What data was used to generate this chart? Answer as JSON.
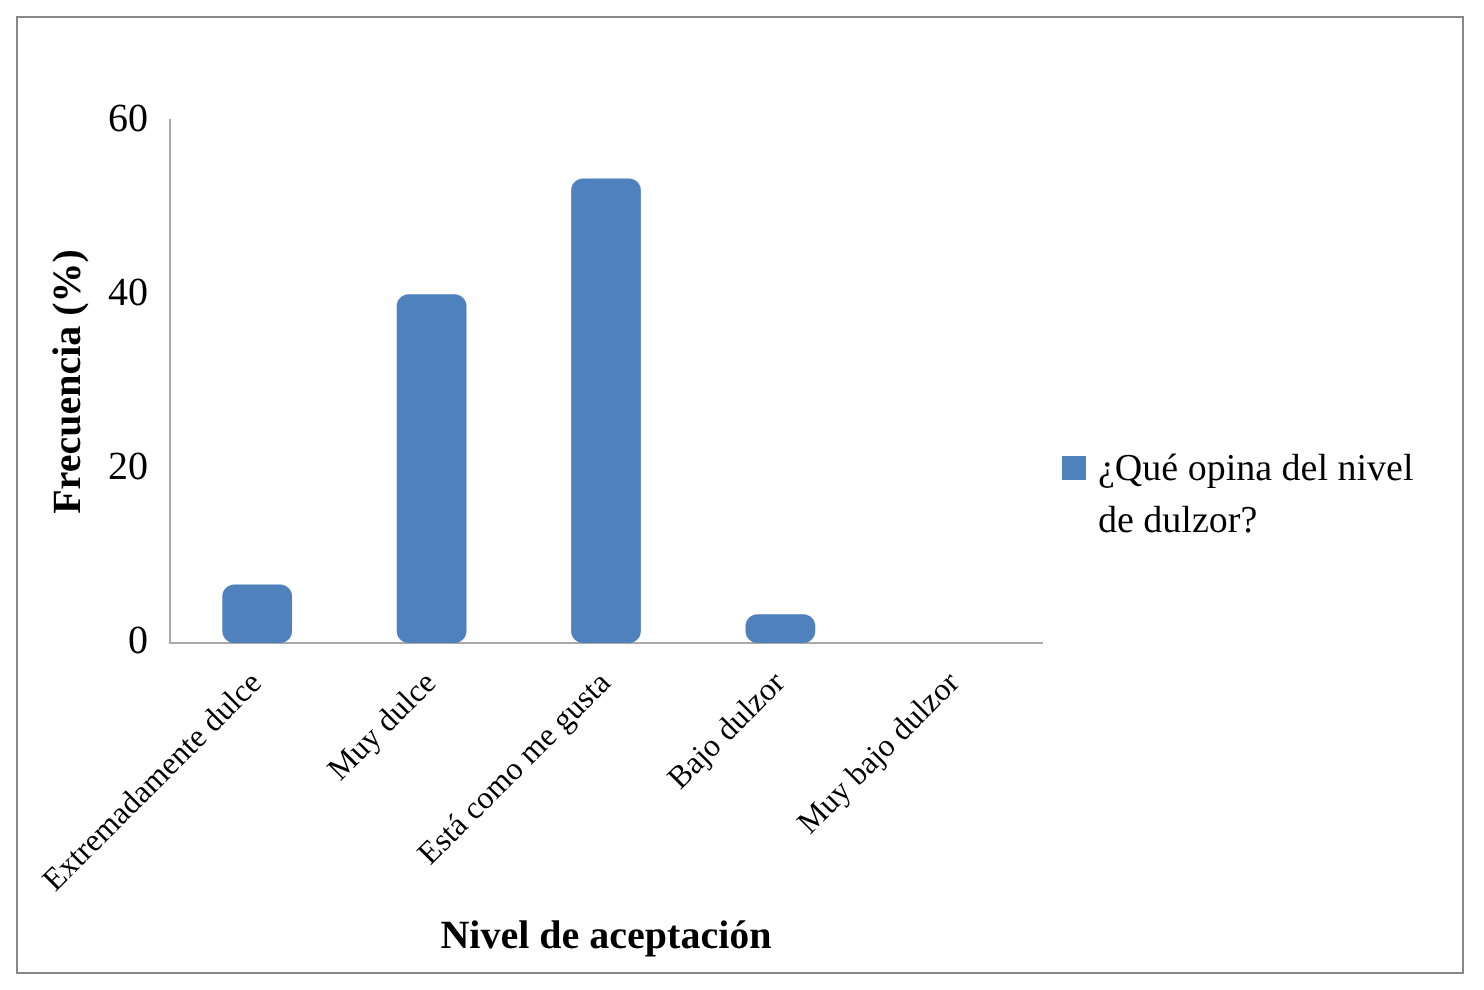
{
  "chart_data": {
    "type": "bar",
    "xlabel": "Nivel de aceptación",
    "ylabel": "Frecuencia (%)",
    "categories": [
      "Extremadamente dulce",
      "Muy dulce",
      "Está como me gusta",
      "Bajo dulzor",
      "Muy bajo dulzor"
    ],
    "series": [
      {
        "name": "¿Qué opina del nivel de dulzor?",
        "color": "#4f81bd",
        "values": [
          6.7,
          40,
          53.3,
          3.3,
          0
        ]
      }
    ],
    "ylim": [
      0,
      60
    ],
    "yticks": [
      0,
      20,
      40,
      60
    ],
    "grid": false,
    "legend": "right"
  }
}
